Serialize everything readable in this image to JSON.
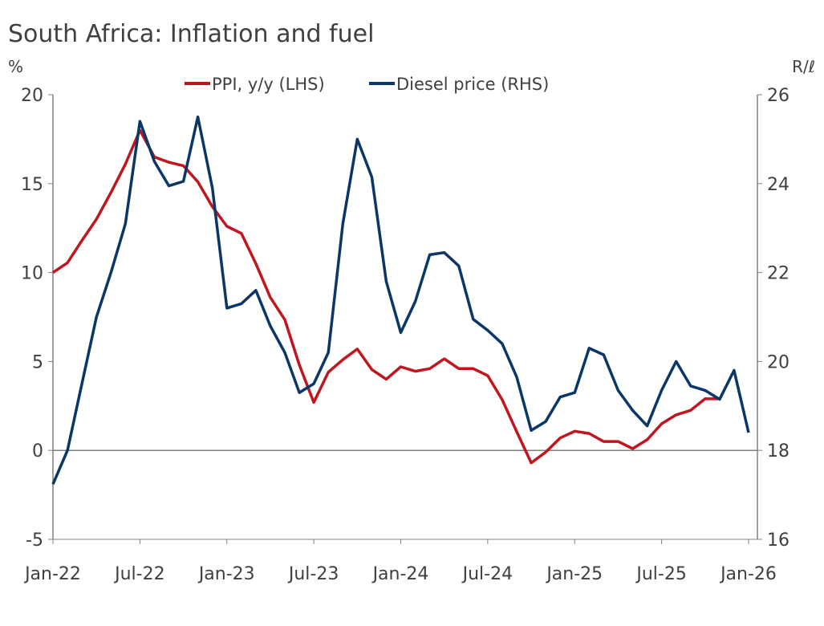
{
  "chart_data": {
    "type": "line",
    "title": "South Africa: Inflation and fuel",
    "ylabel_left": "%",
    "ylabel_right": "R/ℓ",
    "ylim_left": [
      -5,
      20
    ],
    "ylim_right": [
      16,
      26
    ],
    "yticks_left": [
      "-5",
      "0",
      "5",
      "10",
      "15",
      "20"
    ],
    "yticks_right": [
      "16",
      "18",
      "20",
      "22",
      "24",
      "26"
    ],
    "xticks": [
      "Jan-22",
      "Jul-22",
      "Jan-23",
      "Jul-23",
      "Jan-24",
      "Jul-24",
      "Jan-25",
      "Jul-25",
      "Jan-26"
    ],
    "x_start": "Jan-22",
    "x_end": "Jan-26",
    "grid": false,
    "legend": "top-center",
    "series": [
      {
        "name": "PPI, y/y (LHS)",
        "axis": "left",
        "color": "#C0161F",
        "values": [
          10.0,
          10.55,
          11.8,
          13.0,
          14.5,
          16.1,
          18.0,
          16.5,
          16.2,
          16.0,
          15.1,
          13.7,
          12.6,
          12.2,
          10.5,
          8.6,
          7.35,
          4.8,
          2.7,
          4.4,
          5.1,
          5.7,
          4.55,
          4.0,
          4.7,
          4.45,
          4.6,
          5.15,
          4.6,
          4.6,
          4.2,
          2.85,
          1.05,
          -0.7,
          -0.1,
          0.7,
          1.08,
          0.95,
          0.5,
          0.5,
          0.1,
          0.6,
          1.5,
          2.0,
          2.25,
          2.9,
          2.9
        ]
      },
      {
        "name": "Diesel price (RHS)",
        "axis": "right",
        "color": "#0B3668",
        "values": [
          17.24,
          18.0,
          19.5,
          21.0,
          22.0,
          23.1,
          25.4,
          24.5,
          23.95,
          24.05,
          25.5,
          23.9,
          21.2,
          21.3,
          21.6,
          20.8,
          20.2,
          19.3,
          19.5,
          20.2,
          23.1,
          25.0,
          24.15,
          21.8,
          20.65,
          21.35,
          22.4,
          22.45,
          22.15,
          20.95,
          20.7,
          20.4,
          19.65,
          18.45,
          18.65,
          19.2,
          19.3,
          20.3,
          20.15,
          19.35,
          18.9,
          18.55,
          19.35,
          20.0,
          19.45,
          19.35,
          19.15,
          19.8,
          18.4
        ]
      }
    ]
  }
}
